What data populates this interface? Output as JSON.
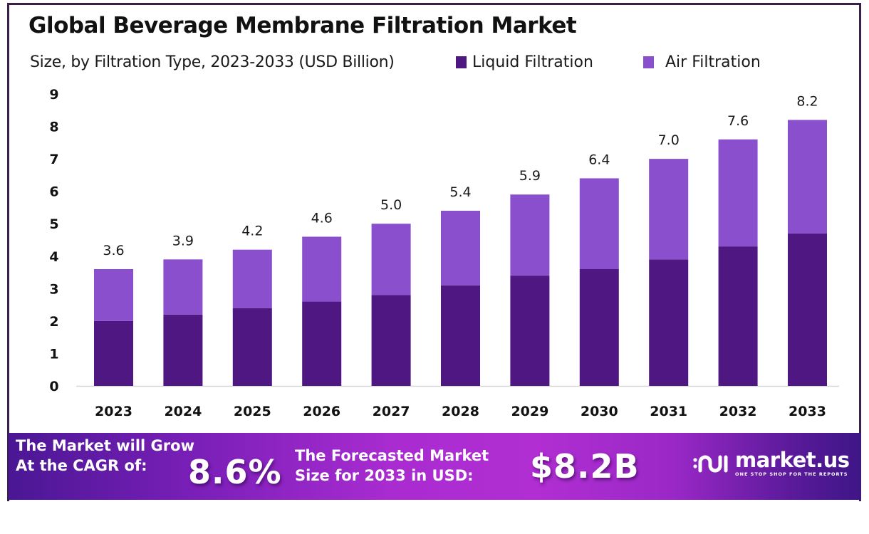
{
  "header": {
    "title": "Global Beverage Membrane Filtration Market",
    "subtitle": "Size, by Filtration Type, 2023-2033 (USD Billion)"
  },
  "legend": [
    {
      "label": "Liquid Filtration",
      "color": "#4f1782"
    },
    {
      "label": "Air Filtration",
      "color": "#8a4fcc"
    }
  ],
  "chart_data": {
    "type": "bar",
    "stacked": true,
    "title": "Global Beverage Membrane Filtration Market",
    "subtitle": "Size, by Filtration Type, 2023-2033 (USD Billion)",
    "xlabel": "",
    "ylabel": "",
    "categories": [
      "2023",
      "2024",
      "2025",
      "2026",
      "2027",
      "2028",
      "2029",
      "2030",
      "2031",
      "2032",
      "2033"
    ],
    "series": [
      {
        "name": "Liquid Filtration",
        "color": "#4f1782",
        "values": [
          2.0,
          2.2,
          2.4,
          2.6,
          2.8,
          3.1,
          3.4,
          3.6,
          3.9,
          4.3,
          4.7
        ]
      },
      {
        "name": "Air Filtration",
        "color": "#8a4fcc",
        "values": [
          1.6,
          1.7,
          1.8,
          2.0,
          2.2,
          2.3,
          2.5,
          2.8,
          3.1,
          3.3,
          3.5
        ]
      }
    ],
    "totals": [
      3.6,
      3.9,
      4.2,
      4.6,
      5.0,
      5.4,
      5.9,
      6.4,
      7.0,
      7.6,
      8.2
    ],
    "total_labels": [
      "3.6",
      "3.9",
      "4.2",
      "4.6",
      "5.0",
      "5.4",
      "5.9",
      "6.4",
      "7.0",
      "7.6",
      "8.2"
    ],
    "ylim": [
      0,
      9
    ],
    "yticks": [
      "0",
      "1",
      "2",
      "3",
      "4",
      "5",
      "6",
      "7",
      "8",
      "9"
    ],
    "grid": false,
    "legend_position": "top-right"
  },
  "banner": {
    "cagr_text_line1": "The Market will Grow",
    "cagr_text_line2": "At the CAGR of:",
    "cagr_value": "8.6%",
    "forecast_text_line1": "The Forecasted Market",
    "forecast_text_line2": "Size for 2033 in USD:",
    "forecast_value": "$8.2B",
    "logo_name": "market.us",
    "logo_tagline": "ONE STOP SHOP FOR THE REPORTS"
  }
}
